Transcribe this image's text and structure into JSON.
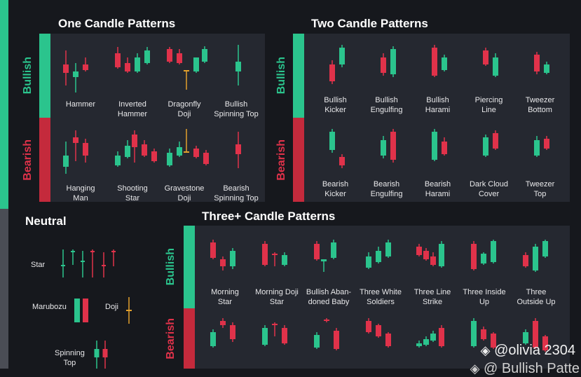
{
  "colors": {
    "bull": "#2bc48d",
    "bear": "#e0324a",
    "doji": "#e3a12c",
    "panel": "#252830",
    "bg": "#16181d"
  },
  "sections": {
    "one": {
      "title": "One Candle Patterns",
      "bull_label": "Bullish",
      "bear_label": "Bearish",
      "bullish": [
        "Hammer",
        "Inverted\nHammer",
        "Dragonfly\nDoji",
        "Bullish\nSpinning Top"
      ],
      "bearish": [
        "Hanging\nMan",
        "Shooting\nStar",
        "Gravestone\nDoji",
        "Bearish\nSpinning Top"
      ]
    },
    "two": {
      "title": "Two Candle Patterns",
      "bull_label": "Bullish",
      "bear_label": "Bearish",
      "bullish": [
        "Bullish\nKicker",
        "Bullish\nEngulfing",
        "Bullish\nHarami",
        "Piercing\nLine",
        "Tweezer\nBottom"
      ],
      "bearish": [
        "Bearish\nKicker",
        "Bearish\nEngulfing",
        "Bearish\nHarami",
        "Dark Cloud\nCover",
        "Tweezer\nTop"
      ]
    },
    "neutral": {
      "title": "Neutral",
      "star": "Star",
      "marubozu": "Marubozu",
      "doji": "Doji",
      "spinning": "Spinning\nTop"
    },
    "three": {
      "title": "Three+ Candle Patterns",
      "bull_label": "Bullish",
      "bear_label": "Bearish",
      "bullish": [
        "Morning\nStar",
        "Morning Doji\nStar",
        "Bullish Aban-\ndoned Baby",
        "Three White\nSoldiers",
        "Three Line\nStrike",
        "Three Inside\nUp",
        "Three\nOutside Up"
      ]
    }
  },
  "watermark": "@olivia 2304",
  "watermark_icon": "binance-diamond-icon",
  "watermark_partial": "@ Bullish Patte"
}
